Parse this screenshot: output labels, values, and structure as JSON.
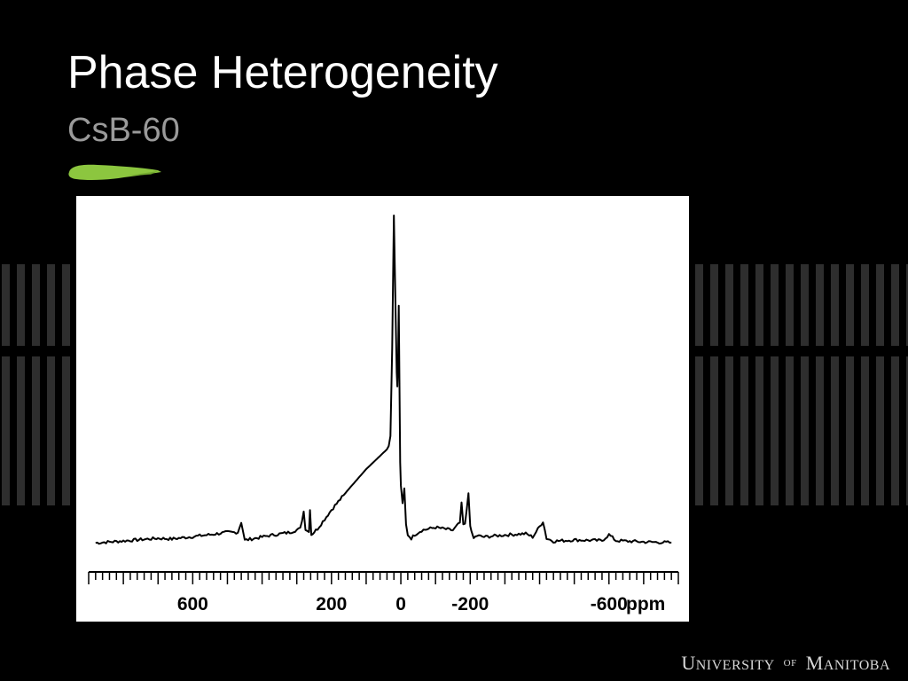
{
  "slide": {
    "title": "Phase Heterogeneity",
    "subtitle": "CsB-60",
    "footer": {
      "word1_initial": "U",
      "word1_rest": "NIVERSITY",
      "connector": "OF",
      "word2_initial": "M",
      "word2_rest": "ANITOBA"
    }
  },
  "colors": {
    "background": "#000000",
    "accent": "#8cc63f",
    "subtitle": "#9a9a9a",
    "plot": "#000000"
  },
  "chart_data": {
    "type": "line",
    "title": "",
    "xlabel": "ppm",
    "ylabel": "",
    "xlim": [
      900,
      -800
    ],
    "x_reversed": true,
    "y_axis_visible": false,
    "grid": false,
    "tick_labels": [
      "600",
      "200",
      "0",
      "-200",
      "-600"
    ],
    "tick_values": [
      600,
      200,
      0,
      -200,
      -600
    ],
    "minor_tick_step": 20,
    "major_tick_step": 100,
    "ylim": [
      0,
      100
    ],
    "series": [
      {
        "x": [
          880,
          800,
          700,
          660,
          550,
          500,
          470,
          460,
          450,
          420,
          380,
          320,
          290,
          280,
          275,
          265,
          262,
          258,
          250,
          240,
          200,
          150,
          100,
          80,
          60,
          40,
          35,
          30,
          25,
          20,
          15,
          12,
          10,
          8,
          6,
          2,
          0,
          -5,
          -10,
          -15,
          -20,
          -30,
          -40,
          -60,
          -100,
          -150,
          -170,
          -175,
          -180,
          -185,
          -195,
          -200,
          -203,
          -210,
          -220,
          -240,
          -300,
          -360,
          -380,
          -410,
          -420,
          -440,
          -500,
          -580,
          -600,
          -620,
          -700,
          -780
        ],
        "y": [
          1,
          1.6,
          2.4,
          2.2,
          3.5,
          4.2,
          4.2,
          7.3,
          1.8,
          2.4,
          3.2,
          4.2,
          5.3,
          10.5,
          5.3,
          4.3,
          11.3,
          3.5,
          4.3,
          5.3,
          11,
          17.3,
          23.3,
          25.3,
          27.3,
          29.3,
          30.3,
          33.3,
          60,
          100,
          70,
          52.5,
          48.3,
          55,
          72.7,
          25.3,
          18.3,
          12.8,
          17.5,
          6.5,
          3.5,
          2.4,
          3.5,
          4.8,
          5.7,
          4.8,
          7.1,
          12.8,
          6.5,
          6.5,
          16,
          6.5,
          4.3,
          2.4,
          3.2,
          2.8,
          3.4,
          3.8,
          2.8,
          7.5,
          2.4,
          1.5,
          1.9,
          1.7,
          3.5,
          1.7,
          1.3,
          1.1
        ]
      }
    ]
  }
}
